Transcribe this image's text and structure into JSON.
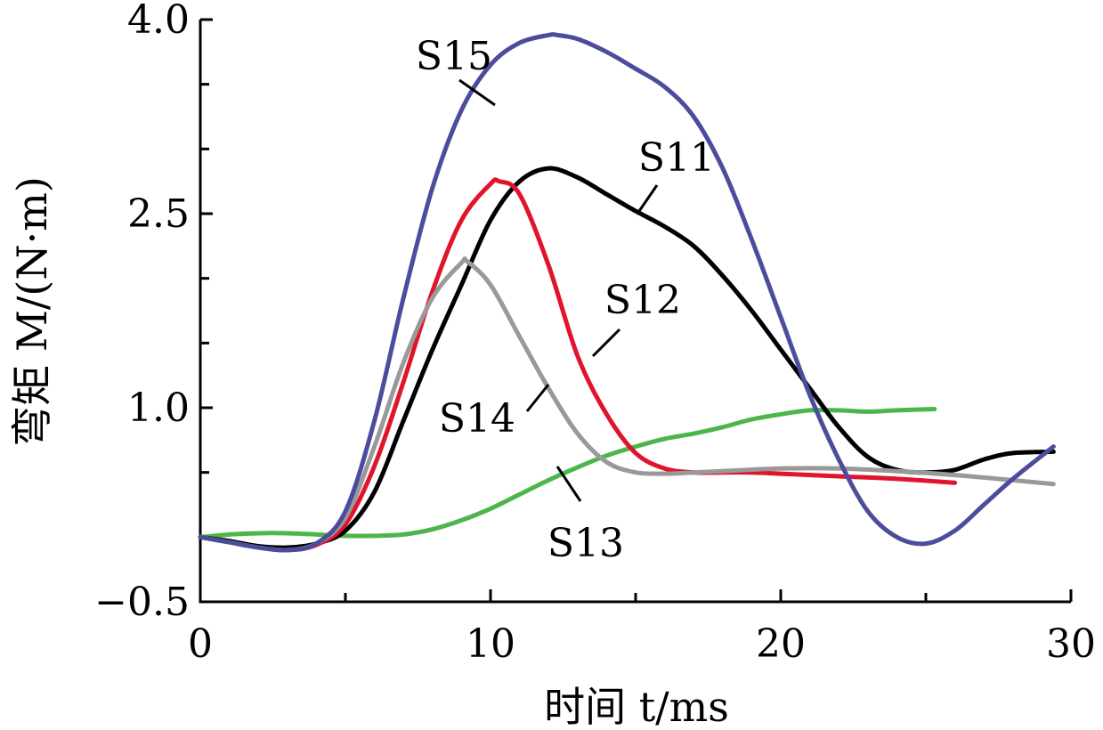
{
  "chart_data": {
    "type": "line",
    "xlabel": "时间 t/ms",
    "ylabel": "弯矩 M/(N·m)",
    "xlim": [
      0,
      30
    ],
    "ylim": [
      -0.5,
      4.0
    ],
    "xticks": [
      0,
      10,
      20,
      30
    ],
    "yticks": [
      -0.5,
      1.0,
      2.5,
      4.0
    ],
    "xtick_labels": [
      "0",
      "10",
      "20",
      "30"
    ],
    "ytick_labels": [
      "−0.5",
      "1.0",
      "2.5",
      "4.0"
    ],
    "grid": false,
    "legend": "none (series labeled inline)",
    "series": [
      {
        "name": "S11",
        "color": "#000000",
        "x": [
          0,
          1,
          2,
          3,
          4,
          5,
          6,
          7,
          8,
          9,
          10,
          11,
          12,
          13,
          14,
          15,
          16,
          17,
          18,
          19,
          20,
          21,
          22,
          23,
          24,
          25,
          26,
          27,
          28,
          29.4
        ],
        "y": [
          0.0,
          -0.03,
          -0.07,
          -0.08,
          -0.05,
          0.05,
          0.35,
          0.9,
          1.45,
          1.95,
          2.45,
          2.75,
          2.85,
          2.78,
          2.65,
          2.52,
          2.4,
          2.25,
          2.02,
          1.75,
          1.45,
          1.15,
          0.85,
          0.62,
          0.52,
          0.5,
          0.52,
          0.6,
          0.65,
          0.66
        ]
      },
      {
        "name": "S12",
        "color": "#e0142c",
        "x": [
          0,
          1,
          2,
          3,
          4,
          5,
          6,
          7,
          8,
          9,
          10,
          10.3,
          11,
          12,
          13,
          14,
          15,
          16,
          17,
          18,
          19,
          20,
          22,
          24,
          26
        ],
        "y": [
          0.0,
          -0.04,
          -0.08,
          -0.1,
          -0.06,
          0.1,
          0.55,
          1.2,
          1.9,
          2.45,
          2.73,
          2.75,
          2.65,
          2.1,
          1.4,
          0.95,
          0.65,
          0.53,
          0.5,
          0.5,
          0.5,
          0.49,
          0.47,
          0.45,
          0.42
        ]
      },
      {
        "name": "S13",
        "color": "#4cb64a",
        "x": [
          0,
          1,
          2,
          3,
          4,
          5,
          6,
          7,
          8,
          9,
          10,
          11,
          12,
          13,
          14,
          15,
          16,
          17,
          18,
          19,
          20,
          21,
          22,
          23,
          24,
          25.3
        ],
        "y": [
          0.0,
          0.02,
          0.03,
          0.03,
          0.02,
          0.01,
          0.01,
          0.02,
          0.06,
          0.13,
          0.22,
          0.33,
          0.44,
          0.54,
          0.63,
          0.7,
          0.76,
          0.8,
          0.85,
          0.91,
          0.95,
          0.98,
          0.98,
          0.97,
          0.98,
          0.99
        ]
      },
      {
        "name": "S14",
        "color": "#999999",
        "x": [
          0,
          1,
          2,
          3,
          4,
          5,
          6,
          7,
          8,
          9,
          9.2,
          10,
          11,
          12,
          13,
          14,
          15,
          16,
          17,
          18,
          20,
          22,
          24,
          26,
          28,
          29.4
        ],
        "y": [
          0.0,
          -0.04,
          -0.08,
          -0.1,
          -0.05,
          0.15,
          0.7,
          1.35,
          1.85,
          2.12,
          2.13,
          1.95,
          1.55,
          1.15,
          0.8,
          0.58,
          0.5,
          0.49,
          0.5,
          0.51,
          0.53,
          0.53,
          0.51,
          0.48,
          0.44,
          0.41
        ]
      },
      {
        "name": "S15",
        "color": "#4b4d9c",
        "x": [
          0,
          1,
          2,
          3,
          4,
          5,
          6,
          7,
          8,
          9,
          10,
          11,
          12,
          12.3,
          13,
          14,
          15,
          16,
          17,
          18,
          19,
          20,
          21,
          22,
          23,
          24,
          25,
          26,
          27,
          28,
          29.4
        ],
        "y": [
          0.0,
          -0.04,
          -0.08,
          -0.1,
          -0.05,
          0.2,
          0.9,
          1.85,
          2.7,
          3.3,
          3.65,
          3.82,
          3.88,
          3.88,
          3.85,
          3.75,
          3.62,
          3.48,
          3.25,
          2.85,
          2.3,
          1.7,
          1.1,
          0.6,
          0.2,
          0.0,
          -0.05,
          0.05,
          0.25,
          0.45,
          0.7
        ]
      }
    ],
    "annotations": [
      {
        "text": "S15",
        "series": "S15"
      },
      {
        "text": "S11",
        "series": "S11"
      },
      {
        "text": "S12",
        "series": "S12"
      },
      {
        "text": "S14",
        "series": "S14"
      },
      {
        "text": "S13",
        "series": "S13"
      }
    ]
  }
}
